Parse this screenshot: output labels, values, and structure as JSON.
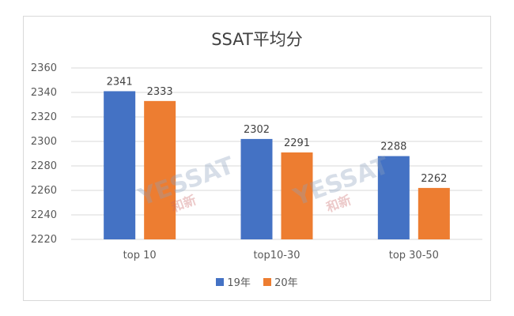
{
  "chart_data": {
    "type": "bar",
    "title": "SSAT平均分",
    "categories": [
      "top 10",
      "top10-30",
      "top 30-50"
    ],
    "series": [
      {
        "name": "19年",
        "color": "#4472C4",
        "values": [
          2341,
          2302,
          2288
        ]
      },
      {
        "name": "20年",
        "color": "#ED7D31",
        "values": [
          2333,
          2291,
          2262
        ]
      }
    ],
    "ylim": [
      2220,
      2360
    ],
    "yticks": [
      2220,
      2240,
      2260,
      2280,
      2300,
      2320,
      2340,
      2360
    ],
    "grid": true,
    "legend": "bottom"
  },
  "watermark": {
    "text": "YESSAT",
    "sub": "和新"
  }
}
